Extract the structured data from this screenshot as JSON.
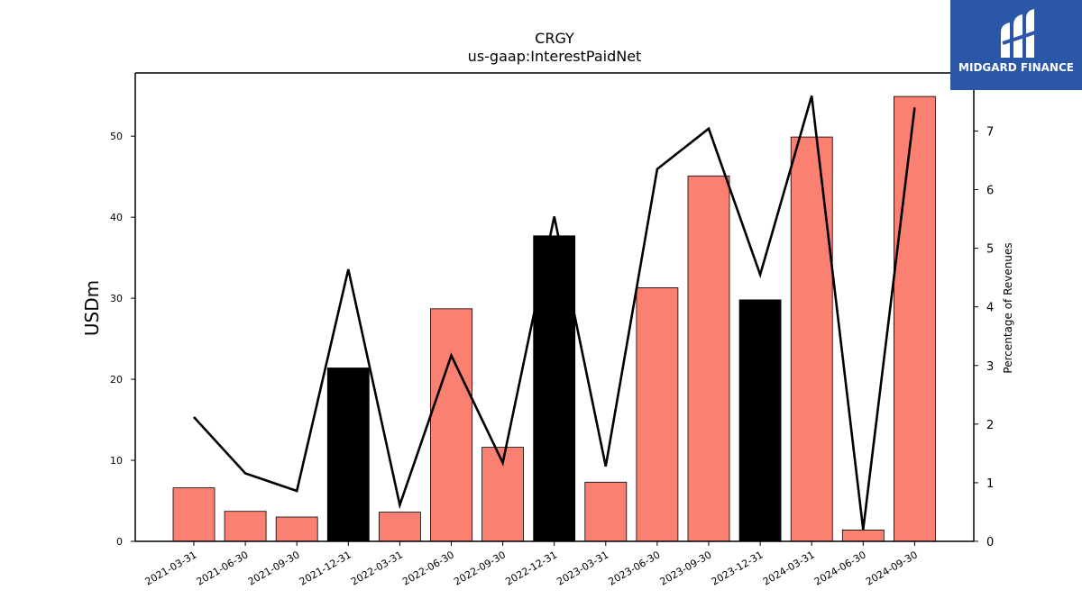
{
  "brand": {
    "name": "MIDGARD FINANCE",
    "bg_color": "#2b57a8"
  },
  "chart_data": {
    "type": "bar",
    "title": "CRGY",
    "subtitle": "us-gaap:InterestPaidNet",
    "ylabel": "USDm",
    "y2label": "Percentage of Revenues",
    "categories": [
      "2021-03-31",
      "2021-06-30",
      "2021-09-30",
      "2021-12-31",
      "2022-03-31",
      "2022-06-30",
      "2022-09-30",
      "2022-12-31",
      "2023-03-31",
      "2023-06-30",
      "2023-09-30",
      "2023-12-31",
      "2024-03-31",
      "2024-06-30",
      "2024-09-30"
    ],
    "series": [
      {
        "kind": "bar",
        "axis": "left",
        "values": [
          6.6,
          3.7,
          3.0,
          21.4,
          3.6,
          28.7,
          11.6,
          37.7,
          7.3,
          31.3,
          45.1,
          29.8,
          49.9,
          1.4,
          54.9
        ],
        "colors": [
          "#fa8072",
          "#fa8072",
          "#fa8072",
          "#000000",
          "#fa8072",
          "#fa8072",
          "#fa8072",
          "#000000",
          "#fa8072",
          "#fa8072",
          "#fa8072",
          "#000000",
          "#fa8072",
          "#fa8072",
          "#fa8072"
        ]
      },
      {
        "kind": "line",
        "axis": "right",
        "color": "#000000",
        "values": [
          2.12,
          1.16,
          0.86,
          4.64,
          0.62,
          3.17,
          1.34,
          5.54,
          1.28,
          6.35,
          7.04,
          4.55,
          7.6,
          0.2,
          7.4
        ]
      }
    ],
    "ylim": [
      0,
      57.8
    ],
    "y2lim": [
      0,
      7.99
    ],
    "yticks": [
      0,
      10,
      20,
      30,
      40,
      50
    ],
    "y2ticks": [
      0,
      1,
      2,
      3,
      4,
      5,
      6,
      7
    ],
    "grid": false,
    "legend": "none"
  }
}
